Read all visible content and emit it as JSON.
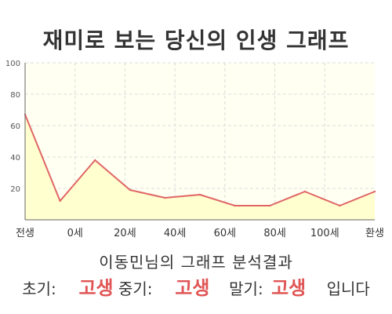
{
  "title": "재미로 보는 당신의 인생 그래프",
  "result_text": "이동민님의 그래프 분석결과",
  "summary": {
    "early_label": "초기:",
    "early_value": "고생",
    "middle_label": "중기:",
    "middle_value": "고생",
    "late_label": "말기:",
    "late_value": "고생",
    "ending": "입니다"
  },
  "colors": {
    "line": "#e06666",
    "fill": "#ffffcc",
    "text_highlight": "#e05555"
  },
  "chart_data": {
    "type": "area",
    "title": "재미로 보는 당신의 인생 그래프",
    "xlabel": "",
    "ylabel": "",
    "x_tick_labels": [
      "전생",
      "0세",
      "20세",
      "40세",
      "60세",
      "80세",
      "100세",
      "환생"
    ],
    "y_ticks": [
      20,
      40,
      60,
      80,
      100
    ],
    "ylim": [
      0,
      100
    ],
    "grid": true,
    "series": [
      {
        "values": [
          67,
          12,
          38,
          19,
          14,
          16,
          9,
          9,
          18,
          9,
          18
        ]
      }
    ]
  }
}
